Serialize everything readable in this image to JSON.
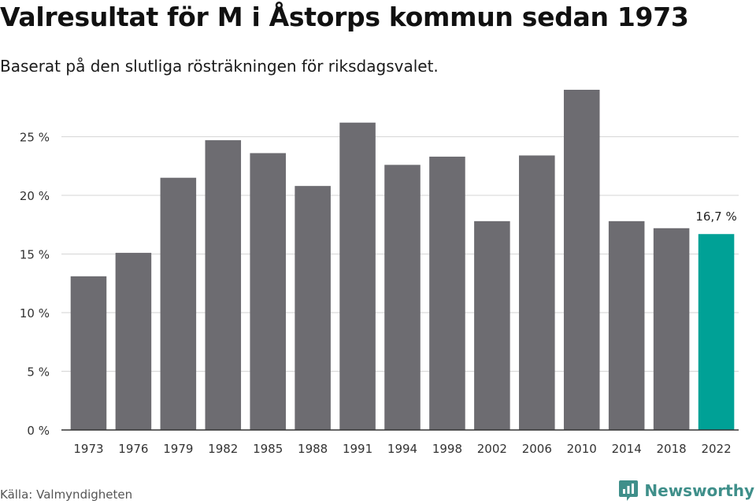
{
  "header": {
    "title": "Valresultat för M i Åstorps kommun sedan 1973",
    "subtitle": "Baserat på den slutliga rösträkningen för riksdagsvalet."
  },
  "footer": {
    "source": "Källa: Valmyndigheten",
    "brand": "Newsworthy"
  },
  "colors": {
    "bar": "#6d6c71",
    "highlight": "#00a196",
    "grid": "#d9d9d9",
    "axis": "#333333",
    "brand": "#3f8f8a"
  },
  "icons": {
    "brand_logo": "newsworthy-logo-icon"
  },
  "chart_data": {
    "type": "bar",
    "categories": [
      "1973",
      "1976",
      "1979",
      "1982",
      "1985",
      "1988",
      "1991",
      "1994",
      "1998",
      "2002",
      "2006",
      "2010",
      "2014",
      "2018",
      "2022"
    ],
    "values": [
      13.1,
      15.1,
      21.5,
      24.7,
      23.6,
      20.8,
      26.2,
      22.6,
      23.3,
      17.8,
      23.4,
      29.0,
      17.8,
      17.2,
      16.7
    ],
    "unit": "%",
    "ylim": [
      0,
      29
    ],
    "yticks": [
      0,
      5,
      10,
      15,
      20,
      25
    ],
    "ytick_labels": [
      "0 %",
      "5 %",
      "10 %",
      "15 %",
      "20 %",
      "25 %"
    ],
    "grid": true,
    "highlight_index": 14,
    "data_labels": [
      {
        "index": 14,
        "text": "16,7 %"
      }
    ],
    "title": "Valresultat för M i Åstorps kommun sedan 1973",
    "subtitle": "Baserat på den slutliga rösträkningen för riksdagsvalet.",
    "xlabel": "",
    "ylabel": ""
  }
}
